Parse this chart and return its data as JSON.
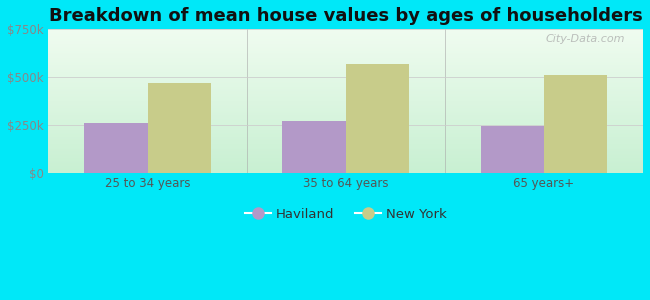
{
  "title": "Breakdown of mean house values by ages of householders",
  "categories": [
    "25 to 34 years",
    "35 to 64 years",
    "65 years+"
  ],
  "haviland_values": [
    260000,
    268000,
    245000
  ],
  "newyork_values": [
    468000,
    568000,
    510000
  ],
  "haviland_color": "#b399c8",
  "newyork_color": "#c8cc8a",
  "background_outer": "#00e8f8",
  "ylim": [
    0,
    750000
  ],
  "yticks": [
    0,
    250000,
    500000,
    750000
  ],
  "legend_labels": [
    "Haviland",
    "New York"
  ],
  "bar_width": 0.32,
  "title_fontsize": 13,
  "tick_fontsize": 8.5,
  "legend_fontsize": 9.5,
  "watermark": "City-Data.com",
  "grid_color": "#e0e0e0",
  "bg_top": "#f0faf0",
  "bg_bottom": "#c8f0d0"
}
